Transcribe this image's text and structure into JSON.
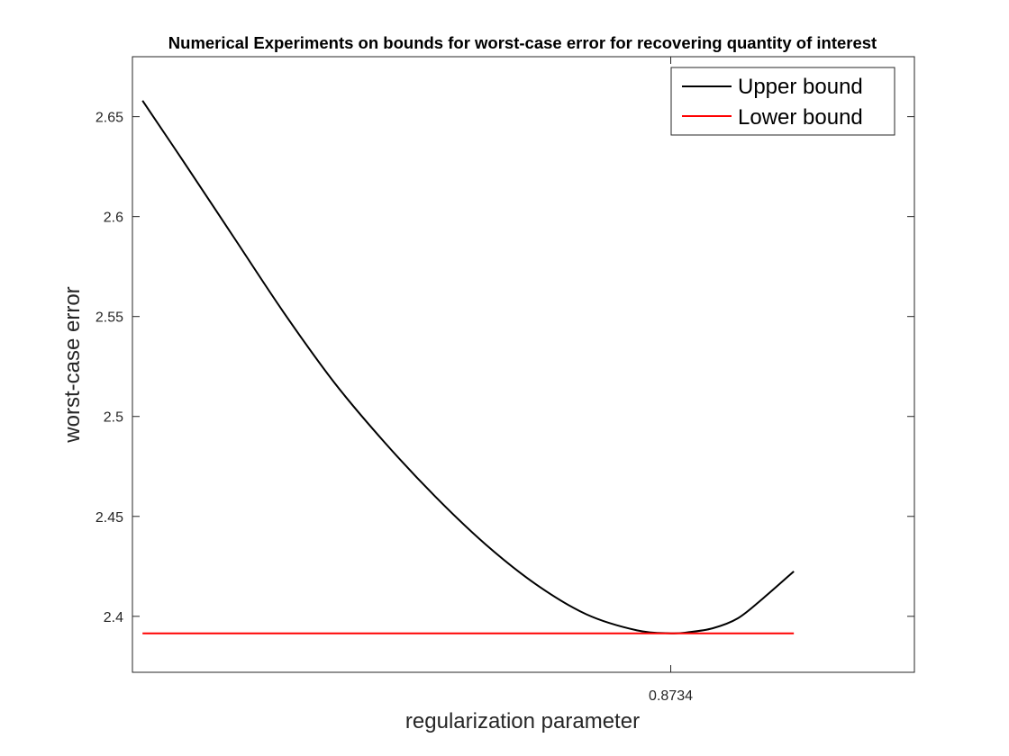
{
  "chart_data": {
    "type": "line",
    "title": "Numerical Experiments on bounds for worst-case error for recovering quantity of interest",
    "xlabel": "regularization parameter",
    "ylabel": "worst-case error",
    "xlim": [
      0.66,
      0.97
    ],
    "ylim": [
      2.372,
      2.68
    ],
    "xticks": [
      0.8734
    ],
    "xtick_labels": [
      "0.8734"
    ],
    "yticks": [
      2.4,
      2.45,
      2.5,
      2.55,
      2.6,
      2.65
    ],
    "ytick_labels": [
      "2.4",
      "2.45",
      "2.5",
      "2.55",
      "2.6",
      "2.65"
    ],
    "grid": false,
    "legend_position": "top-right",
    "series": [
      {
        "name": "Upper bound",
        "color": "#000000",
        "x": [
          0.664,
          0.68,
          0.7,
          0.72,
          0.74,
          0.76,
          0.78,
          0.8,
          0.82,
          0.84,
          0.86,
          0.8734,
          0.88,
          0.89,
          0.9,
          0.91,
          0.9222
        ],
        "y": [
          2.658,
          2.628,
          2.59,
          2.552,
          2.517,
          2.487,
          2.46,
          2.436,
          2.416,
          2.401,
          2.393,
          2.3915,
          2.392,
          2.394,
          2.399,
          2.409,
          2.4225
        ]
      },
      {
        "name": "Lower bound",
        "color": "#ff0000",
        "x": [
          0.664,
          0.9222
        ],
        "y": [
          2.3915,
          2.3915
        ]
      }
    ]
  }
}
